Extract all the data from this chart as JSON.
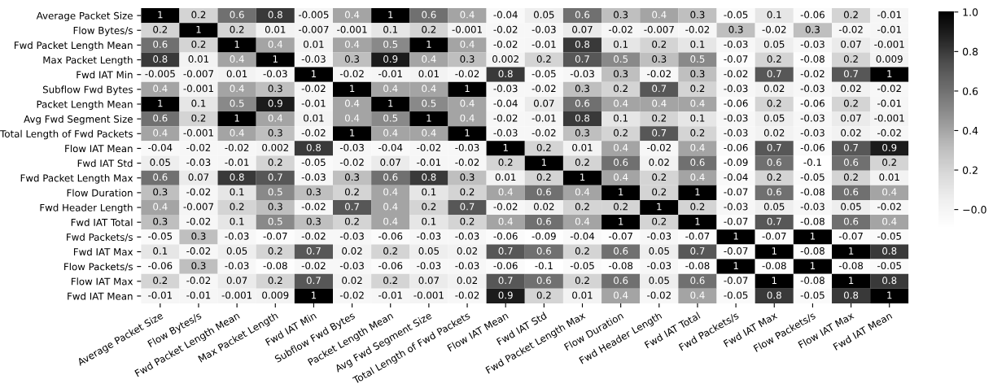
{
  "chart_data": {
    "type": "heatmap",
    "categories": [
      "Average Packet Size",
      "Flow Bytes/s",
      "Fwd Packet Length Mean",
      "Max Packet Length",
      "Fwd IAT Min",
      "Subflow Fwd Bytes",
      "Packet Length Mean",
      "Avg Fwd Segment Size",
      "Total Length of Fwd Packets",
      "Flow IAT Mean",
      "Fwd IAT Std",
      "Fwd Packet Length Max",
      "Flow Duration",
      "Fwd Header Length",
      "Fwd IAT Total",
      "Fwd Packets/s",
      "Fwd IAT Max",
      "Flow Packets/s",
      "Flow IAT Max",
      "Fwd IAT Mean"
    ],
    "y_categories": [
      "Average Packet Size",
      "Flow Bytes/s",
      "Fwd Packet Length Mean",
      "Max Packet Length",
      "Fwd IAT Min",
      "Subflow Fwd Bytes",
      "Packet Length Mean",
      "Avg Fwd Segment Size",
      "Total Length of Fwd Packets",
      "Flow IAT Mean",
      "Fwd IAT Std",
      "Fwd Packet Length Max",
      "Flow Duration",
      "Fwd Header Length",
      "Fwd IAT Total",
      "Fwd Packets/s",
      "Fwd IAT Max",
      "Flow Packets/s",
      "Flow IAT Max",
      "Fwd IAT Mean"
    ],
    "cells": [
      [
        1,
        0.2,
        0.6,
        0.8,
        -0.005,
        0.4,
        1,
        0.6,
        0.4,
        -0.04,
        0.05,
        0.6,
        0.3,
        0.4,
        0.3,
        -0.05,
        0.1,
        -0.06,
        0.2,
        -0.01
      ],
      [
        0.2,
        1,
        0.2,
        0.01,
        -0.007,
        -0.001,
        0.1,
        0.2,
        -0.001,
        -0.02,
        -0.03,
        0.07,
        -0.02,
        -0.007,
        -0.02,
        0.3,
        -0.02,
        0.3,
        -0.02,
        -0.01
      ],
      [
        0.6,
        0.2,
        1,
        0.4,
        0.01,
        0.4,
        0.5,
        1,
        0.4,
        -0.02,
        -0.01,
        0.8,
        0.1,
        0.2,
        0.1,
        -0.03,
        0.05,
        -0.03,
        0.07,
        -0.001
      ],
      [
        0.8,
        0.01,
        0.4,
        1,
        -0.03,
        0.3,
        0.9,
        0.4,
        0.3,
        0.002,
        0.2,
        0.7,
        0.5,
        0.3,
        0.5,
        -0.07,
        0.2,
        -0.08,
        0.2,
        0.009
      ],
      [
        -0.005,
        -0.007,
        0.01,
        -0.03,
        1,
        -0.02,
        -0.01,
        0.01,
        -0.02,
        0.8,
        -0.05,
        -0.03,
        0.3,
        -0.02,
        0.3,
        -0.02,
        0.7,
        -0.02,
        0.7,
        1
      ],
      [
        0.4,
        -0.001,
        0.4,
        0.3,
        -0.02,
        1,
        0.4,
        0.4,
        1,
        -0.03,
        -0.02,
        0.3,
        0.2,
        0.7,
        0.2,
        -0.03,
        0.02,
        -0.03,
        0.02,
        -0.02
      ],
      [
        1,
        0.1,
        0.5,
        0.9,
        -0.01,
        0.4,
        1,
        0.5,
        0.4,
        -0.04,
        0.07,
        0.6,
        0.4,
        0.4,
        0.4,
        -0.06,
        0.2,
        -0.06,
        0.2,
        -0.01
      ],
      [
        0.6,
        0.2,
        1,
        0.4,
        0.01,
        0.4,
        0.5,
        1,
        0.4,
        -0.02,
        -0.01,
        0.8,
        0.1,
        0.2,
        0.1,
        -0.03,
        0.05,
        -0.03,
        0.07,
        -0.001
      ],
      [
        0.4,
        -0.001,
        0.4,
        0.3,
        -0.02,
        1,
        0.4,
        0.4,
        1,
        -0.03,
        -0.02,
        0.3,
        0.2,
        0.7,
        0.2,
        -0.03,
        0.02,
        -0.03,
        0.02,
        -0.02
      ],
      [
        -0.04,
        -0.02,
        -0.02,
        0.002,
        0.8,
        -0.03,
        -0.04,
        -0.02,
        -0.03,
        1,
        0.2,
        0.01,
        0.4,
        -0.02,
        0.4,
        -0.06,
        0.7,
        -0.06,
        0.7,
        0.9
      ],
      [
        0.05,
        -0.03,
        -0.01,
        0.2,
        -0.05,
        -0.02,
        0.07,
        -0.01,
        -0.02,
        0.2,
        1,
        0.2,
        0.6,
        0.02,
        0.6,
        -0.09,
        0.6,
        -0.1,
        0.6,
        0.2
      ],
      [
        0.6,
        0.07,
        0.8,
        0.7,
        -0.03,
        0.3,
        0.6,
        0.8,
        0.3,
        0.01,
        0.2,
        1,
        0.4,
        0.2,
        0.4,
        -0.04,
        0.2,
        -0.05,
        0.2,
        0.01
      ],
      [
        0.3,
        -0.02,
        0.1,
        0.5,
        0.3,
        0.2,
        0.4,
        0.1,
        0.2,
        0.4,
        0.6,
        0.4,
        1,
        0.2,
        1,
        -0.07,
        0.6,
        -0.08,
        0.6,
        0.4
      ],
      [
        0.4,
        -0.007,
        0.2,
        0.3,
        -0.02,
        0.7,
        0.4,
        0.2,
        0.7,
        -0.02,
        0.02,
        0.2,
        0.2,
        1,
        0.2,
        -0.03,
        0.05,
        -0.03,
        0.05,
        -0.02
      ],
      [
        0.3,
        -0.02,
        0.1,
        0.5,
        0.3,
        0.2,
        0.4,
        0.1,
        0.2,
        0.4,
        0.6,
        0.4,
        1,
        0.2,
        1,
        -0.07,
        0.7,
        -0.08,
        0.6,
        0.4
      ],
      [
        -0.05,
        0.3,
        -0.03,
        -0.07,
        -0.02,
        -0.03,
        -0.06,
        -0.03,
        -0.03,
        -0.06,
        -0.09,
        -0.04,
        -0.07,
        -0.03,
        -0.07,
        1,
        -0.07,
        1,
        -0.07,
        -0.05
      ],
      [
        0.1,
        -0.02,
        0.05,
        0.2,
        0.7,
        0.02,
        0.2,
        0.05,
        0.02,
        0.7,
        0.6,
        0.2,
        0.6,
        0.05,
        0.7,
        -0.07,
        1,
        -0.08,
        1,
        0.8
      ],
      [
        -0.06,
        0.3,
        -0.03,
        -0.08,
        -0.02,
        -0.03,
        -0.06,
        -0.03,
        -0.03,
        -0.06,
        -0.1,
        -0.05,
        -0.08,
        -0.03,
        -0.08,
        1,
        -0.08,
        1,
        -0.08,
        -0.05
      ],
      [
        0.2,
        -0.02,
        0.07,
        0.2,
        0.7,
        0.02,
        0.2,
        0.07,
        0.02,
        0.7,
        0.6,
        0.2,
        0.6,
        0.05,
        0.6,
        -0.07,
        1,
        -0.08,
        1,
        0.8
      ],
      [
        -0.01,
        -0.01,
        -0.001,
        0.009,
        1,
        -0.02,
        -0.01,
        -0.001,
        -0.02,
        0.9,
        0.2,
        0.01,
        0.4,
        -0.02,
        0.4,
        -0.05,
        0.8,
        -0.05,
        0.8,
        1
      ]
    ],
    "data_labels": true,
    "clim": [
      -0.1,
      1.0
    ],
    "cticks": [
      {
        "value": 0,
        "label": "−0.0"
      },
      {
        "value": 0.2,
        "label": "0.2"
      },
      {
        "value": 0.4,
        "label": "0.4"
      },
      {
        "value": 0.6,
        "label": "0.6"
      },
      {
        "value": 0.8,
        "label": "0.8"
      },
      {
        "value": 1.0,
        "label": "1.0"
      }
    ]
  }
}
